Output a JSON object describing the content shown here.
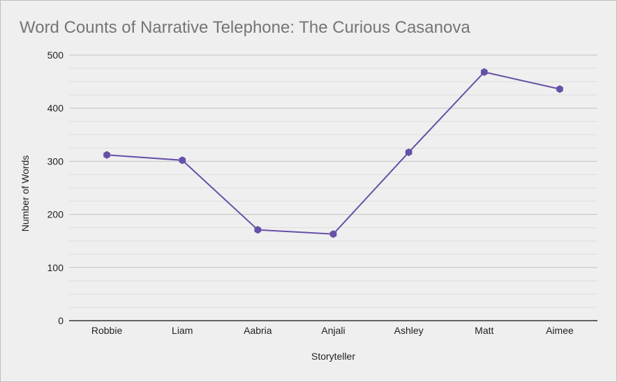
{
  "chart_data": {
    "type": "line",
    "title": "Word Counts of Narrative Telephone: The Curious Casanova",
    "xlabel": "Storyteller",
    "ylabel": "Number of Words",
    "categories": [
      "Robbie",
      "Liam",
      "Aabria",
      "Anjali",
      "Ashley",
      "Matt",
      "Aimee"
    ],
    "series": [
      {
        "values": [
          312,
          302,
          171,
          163,
          317,
          468,
          436
        ]
      }
    ],
    "ylim": [
      0,
      500
    ],
    "yticks": [
      "0",
      "100",
      "200",
      "300",
      "400",
      "500"
    ],
    "grid": true,
    "minor_grid": true,
    "line_color": "#6650a8",
    "marker": "hexagon",
    "background": "#efefef"
  }
}
